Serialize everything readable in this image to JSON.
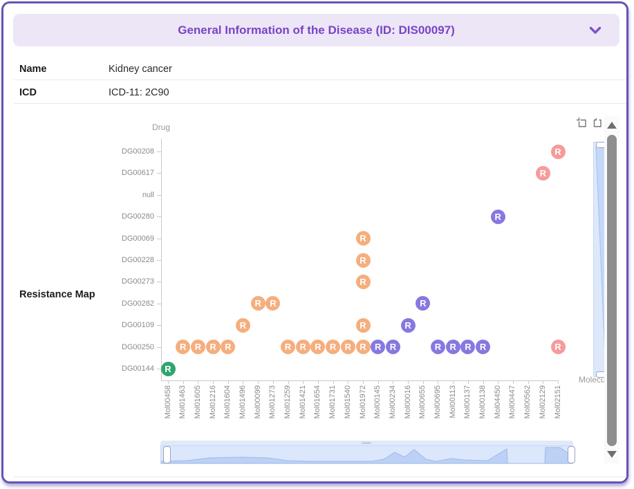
{
  "header": {
    "title": "General Information of the Disease (ID: DIS00097)"
  },
  "icons": {
    "collapse": "chevron-down-icon",
    "toolbox": [
      "zoom-box-icon",
      "restore-icon"
    ],
    "scrollbar": [
      "scroll-up-icon",
      "scroll-down-icon"
    ]
  },
  "fields": [
    {
      "label": "Name",
      "value": "Kidney cancer"
    },
    {
      "label": "ICD",
      "value": "ICD-11: 2C90"
    },
    {
      "label": "Resistance Map",
      "value": ""
    }
  ],
  "chart_data": {
    "type": "scatter",
    "title": "",
    "xlabel": "Molecule",
    "ylabel": "Drug",
    "marker_letter": "R",
    "marker_colors": {
      "orange": "#F5AE7D",
      "purple": "#8678E0",
      "red": "#F59B9B",
      "green": "#2FA56F"
    },
    "x_categories": [
      "Mol00458",
      "Mol01463",
      "Mol01605",
      "Mol01216",
      "Mol01604",
      "Mol01496",
      "Mol00099",
      "Mol01273",
      "Mol01259",
      "Mol01421",
      "Mol01654",
      "Mol01731",
      "Mol01540",
      "Mol01972",
      "Mol00145",
      "Mol00234",
      "Mol00016",
      "Mol00655",
      "Mol00695",
      "Mol00113",
      "Mol00137",
      "Mol00138",
      "Mol04450",
      "Mol00447",
      "Mol00562",
      "Mol02129",
      "Mol02151"
    ],
    "y_categories": [
      "DG00208",
      "DG00617",
      "null",
      "DG00280",
      "DG00069",
      "DG00228",
      "DG00273",
      "DG00282",
      "DG00109",
      "DG00250",
      "DG00144"
    ],
    "points": [
      {
        "drug": "DG00208",
        "molecule": "Mol02151",
        "color_key": "red"
      },
      {
        "drug": "DG00617",
        "molecule": "Mol02129",
        "color_key": "red"
      },
      {
        "drug": "DG00280",
        "molecule": "Mol04450",
        "color_key": "purple"
      },
      {
        "drug": "DG00069",
        "molecule": "Mol01972",
        "color_key": "orange"
      },
      {
        "drug": "DG00228",
        "molecule": "Mol01972",
        "color_key": "orange"
      },
      {
        "drug": "DG00273",
        "molecule": "Mol01972",
        "color_key": "orange"
      },
      {
        "drug": "DG00282",
        "molecule": "Mol00099",
        "color_key": "orange"
      },
      {
        "drug": "DG00282",
        "molecule": "Mol01273",
        "color_key": "orange"
      },
      {
        "drug": "DG00282",
        "molecule": "Mol00655",
        "color_key": "purple"
      },
      {
        "drug": "DG00109",
        "molecule": "Mol01496",
        "color_key": "orange"
      },
      {
        "drug": "DG00109",
        "molecule": "Mol01972",
        "color_key": "orange"
      },
      {
        "drug": "DG00109",
        "molecule": "Mol00016",
        "color_key": "purple"
      },
      {
        "drug": "DG00250",
        "molecule": "Mol01463",
        "color_key": "orange"
      },
      {
        "drug": "DG00250",
        "molecule": "Mol01605",
        "color_key": "orange"
      },
      {
        "drug": "DG00250",
        "molecule": "Mol01216",
        "color_key": "orange"
      },
      {
        "drug": "DG00250",
        "molecule": "Mol01604",
        "color_key": "orange"
      },
      {
        "drug": "DG00250",
        "molecule": "Mol01259",
        "color_key": "orange"
      },
      {
        "drug": "DG00250",
        "molecule": "Mol01421",
        "color_key": "orange"
      },
      {
        "drug": "DG00250",
        "molecule": "Mol01654",
        "color_key": "orange"
      },
      {
        "drug": "DG00250",
        "molecule": "Mol01731",
        "color_key": "orange"
      },
      {
        "drug": "DG00250",
        "molecule": "Mol01540",
        "color_key": "orange"
      },
      {
        "drug": "DG00250",
        "molecule": "Mol01972",
        "color_key": "orange"
      },
      {
        "drug": "DG00250",
        "molecule": "Mol00145",
        "color_key": "purple"
      },
      {
        "drug": "DG00250",
        "molecule": "Mol00234",
        "color_key": "purple"
      },
      {
        "drug": "DG00250",
        "molecule": "Mol00695",
        "color_key": "purple"
      },
      {
        "drug": "DG00250",
        "molecule": "Mol00113",
        "color_key": "purple"
      },
      {
        "drug": "DG00250",
        "molecule": "Mol00137",
        "color_key": "purple"
      },
      {
        "drug": "DG00250",
        "molecule": "Mol00138",
        "color_key": "purple"
      },
      {
        "drug": "DG00250",
        "molecule": "Mol02151",
        "color_key": "red"
      },
      {
        "drug": "DG00144",
        "molecule": "Mol00458",
        "color_key": "green"
      }
    ]
  }
}
